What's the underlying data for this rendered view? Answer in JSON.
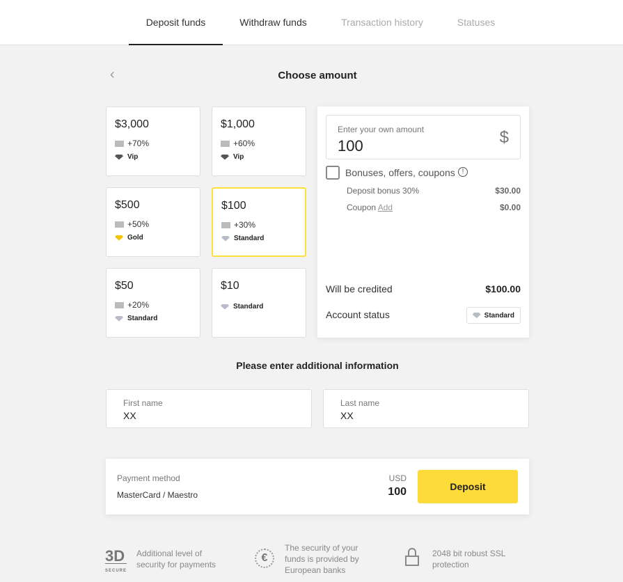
{
  "tabs": [
    "Deposit funds",
    "Withdraw funds",
    "Transaction history",
    "Statuses"
  ],
  "title": "Choose amount",
  "cards": [
    {
      "amount": "$3,000",
      "bonus": "+70%",
      "status": "Vip",
      "gem": "#555"
    },
    {
      "amount": "$1,000",
      "bonus": "+60%",
      "status": "Vip",
      "gem": "#555"
    },
    {
      "amount": "$500",
      "bonus": "+50%",
      "status": "Gold",
      "gem": "#f5c400"
    },
    {
      "amount": "$100",
      "bonus": "+30%",
      "status": "Standard",
      "gem": "#b8bcc8",
      "selected": true
    },
    {
      "amount": "$50",
      "bonus": "+20%",
      "status": "Standard",
      "gem": "#b8bcc8"
    },
    {
      "amount": "$10",
      "bonus": "",
      "status": "Standard",
      "gem": "#b8bcc8"
    }
  ],
  "amount_input": {
    "label": "Enter your own amount",
    "value": "100",
    "currency": "$"
  },
  "bonuses": {
    "label": "Bonuses, offers, coupons",
    "deposit_bonus_label": "Deposit bonus 30%",
    "deposit_bonus_value": "$30.00",
    "coupon_label": "Coupon",
    "coupon_link": "Add",
    "coupon_value": "$0.00"
  },
  "credited": {
    "label": "Will be credited",
    "value": "$100.00"
  },
  "account_status": {
    "label": "Account status",
    "value": "Standard"
  },
  "info_title": "Please enter additional information",
  "first_name": {
    "label": "First name",
    "value": "XX"
  },
  "last_name": {
    "label": "Last name",
    "value": "XX"
  },
  "payment": {
    "label": "Payment method",
    "value": "MasterCard / Maestro",
    "currency": "USD",
    "amount": "100",
    "button": "Deposit"
  },
  "footer": {
    "3d_logo": "3D",
    "3d_sub": "SECURE",
    "3d_text": "Additional level of security for payments",
    "euro_text": "The security of your funds is provided by European banks",
    "ssl_text": "2048 bit robust SSL protection"
  },
  "colors": {
    "accent": "#fddb3a"
  }
}
